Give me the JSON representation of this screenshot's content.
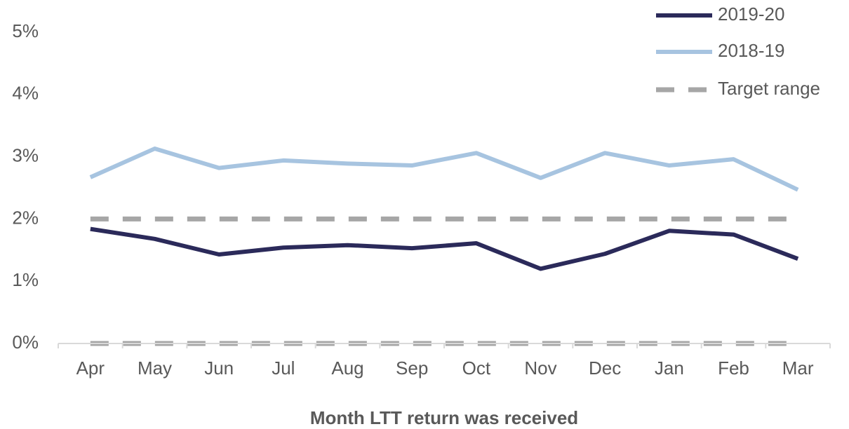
{
  "chart_data": {
    "type": "line",
    "x_label": "Month LTT return was received",
    "categories": [
      "Apr",
      "May",
      "Jun",
      "Jul",
      "Aug",
      "Sep",
      "Oct",
      "Nov",
      "Dec",
      "Jan",
      "Feb",
      "Mar"
    ],
    "series": [
      {
        "name": "2019-20",
        "color": "#2b2a5a",
        "values": [
          1.84,
          1.68,
          1.43,
          1.54,
          1.58,
          1.53,
          1.61,
          1.2,
          1.44,
          1.81,
          1.75,
          1.36
        ]
      },
      {
        "name": "2018-19",
        "color": "#a7c4e0",
        "values": [
          2.67,
          3.13,
          2.82,
          2.94,
          2.89,
          2.86,
          3.06,
          2.66,
          3.06,
          2.86,
          2.96,
          2.47
        ]
      }
    ],
    "target_range": {
      "name": "Target range",
      "color": "#a6a6a6",
      "values": [
        0,
        2
      ]
    },
    "ylim": [
      0,
      5
    ],
    "yticks": [
      {
        "value": 0,
        "label": "0%"
      },
      {
        "value": 1,
        "label": "1%"
      },
      {
        "value": 2,
        "label": "2%"
      },
      {
        "value": 3,
        "label": "3%"
      },
      {
        "value": 4,
        "label": "4%"
      },
      {
        "value": 5,
        "label": "5%"
      }
    ],
    "legend": "top-right"
  }
}
